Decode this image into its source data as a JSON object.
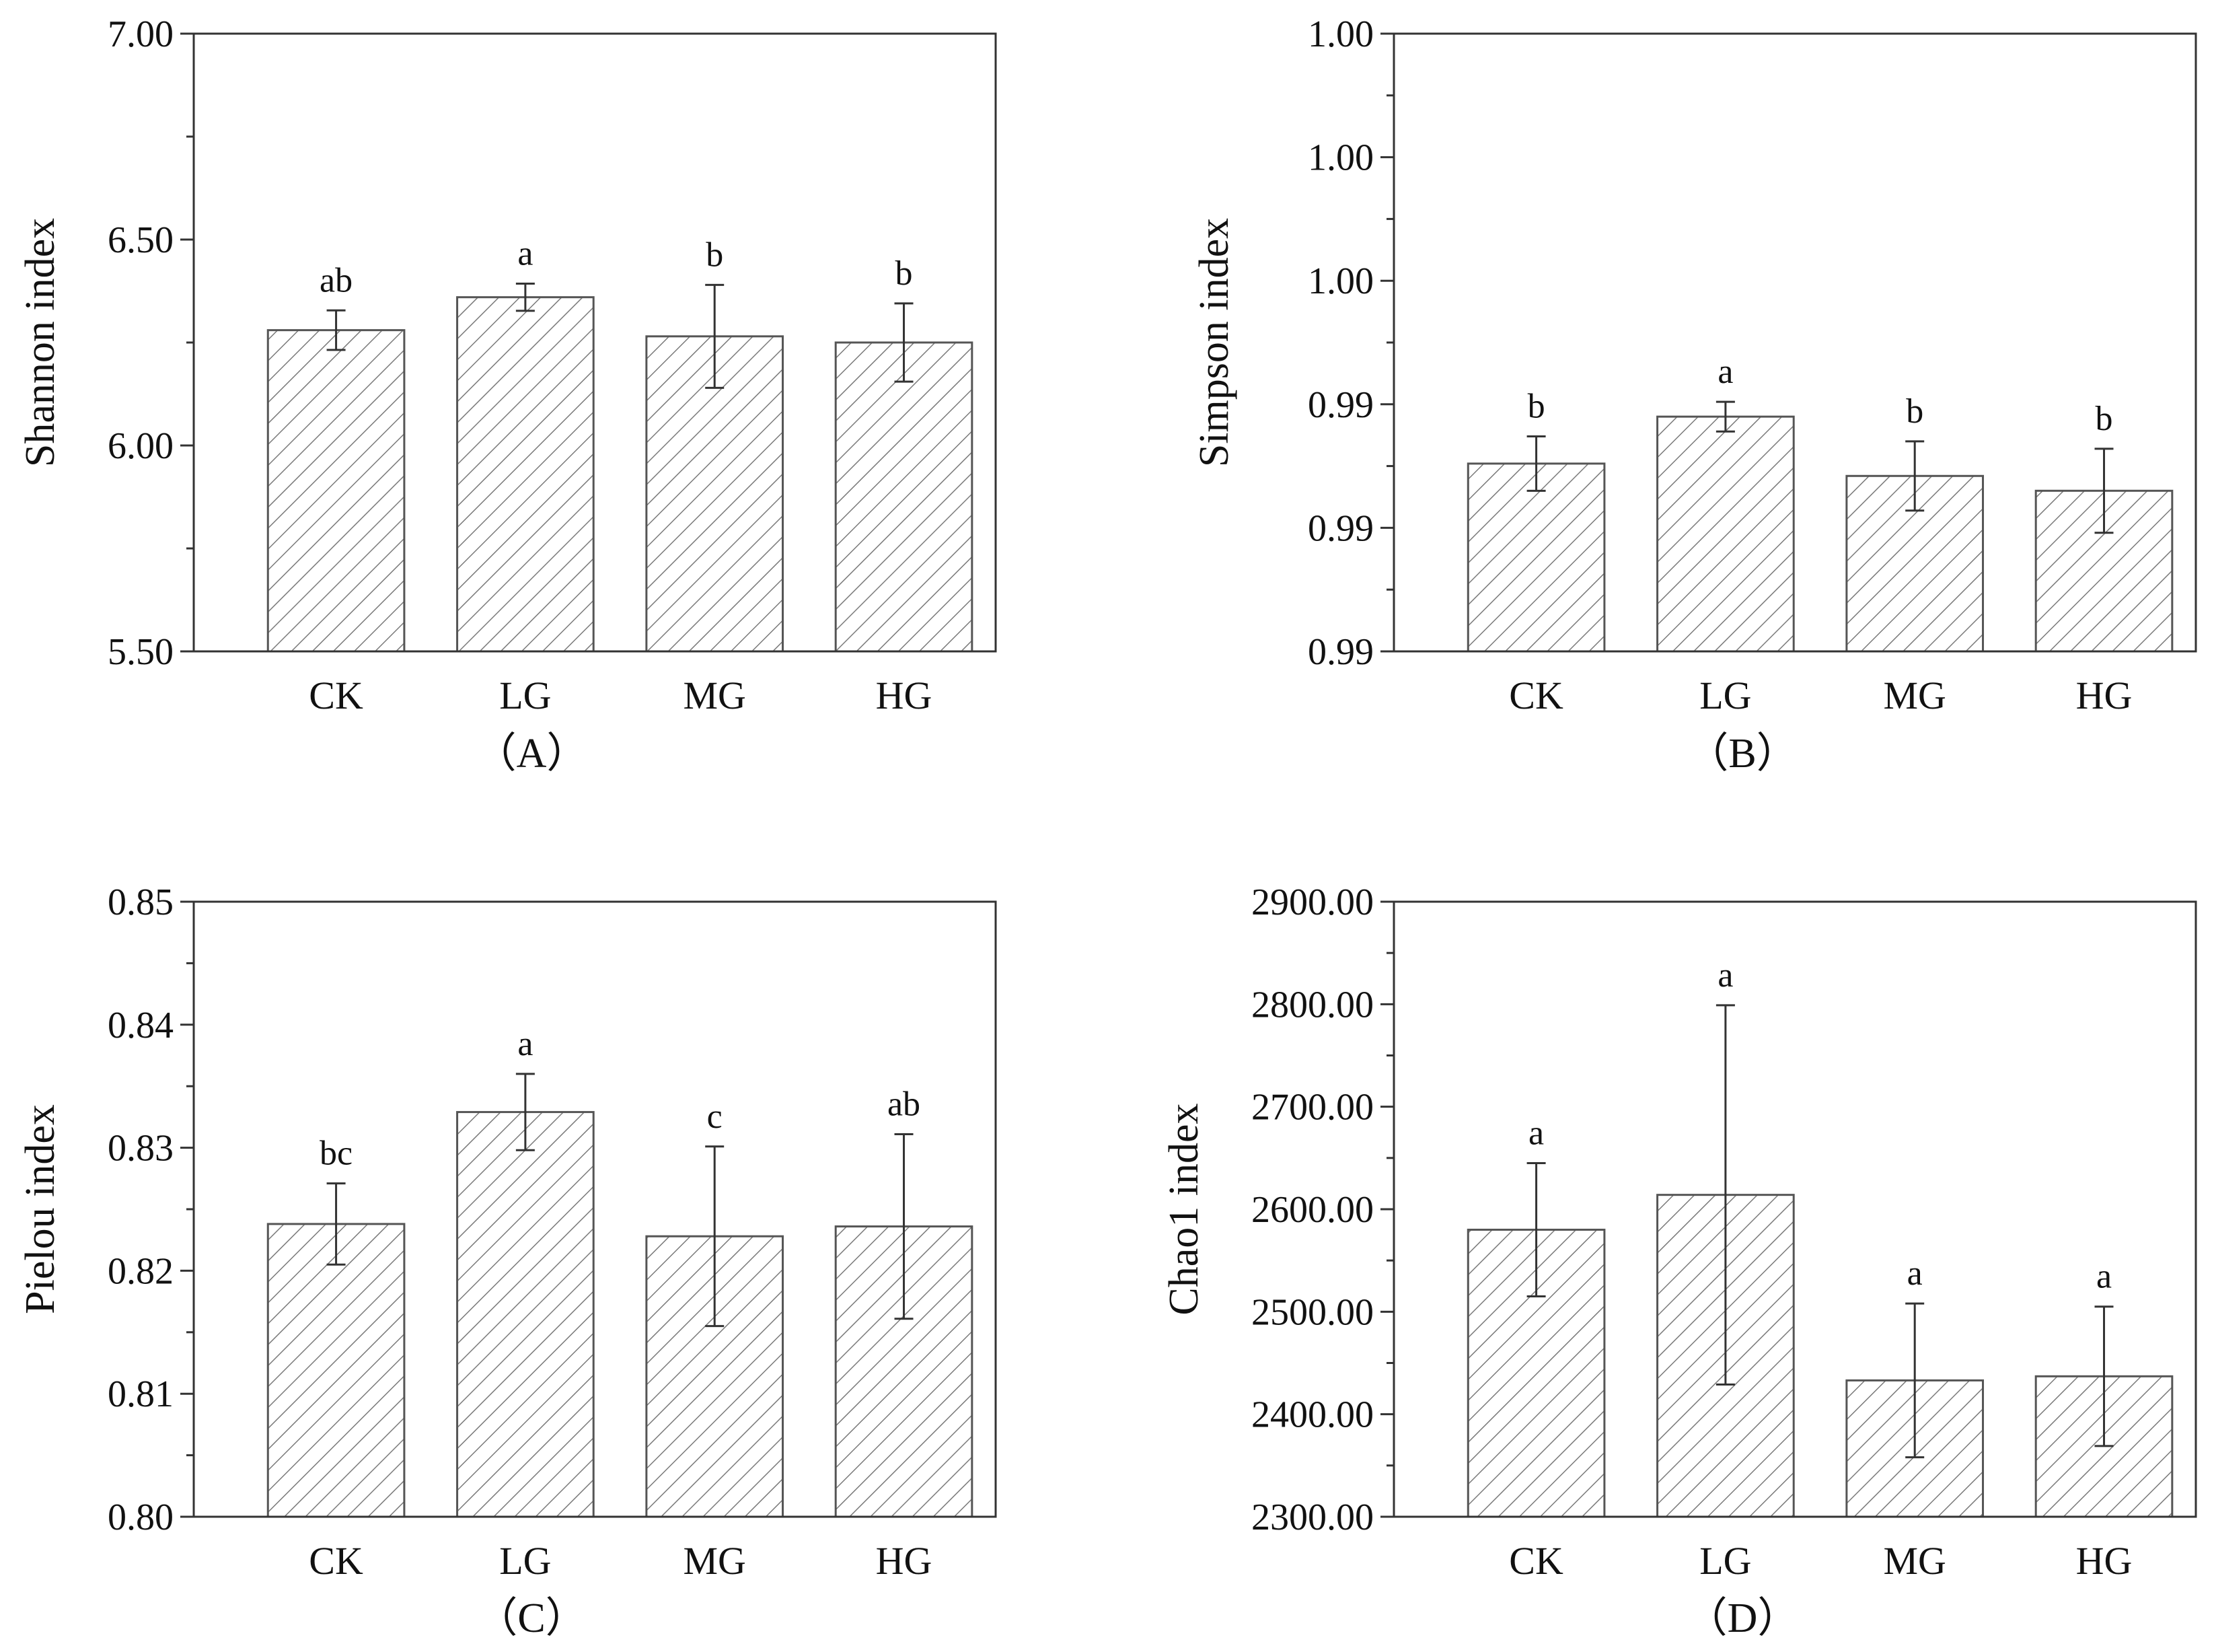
{
  "colors": {
    "bar_fill": "#ffffff",
    "hatch": "#7a7a7a",
    "axis": "#333333",
    "error": "#333333"
  },
  "chart_data": [
    {
      "type": "bar",
      "panel": "(A)",
      "caption": "（A）",
      "ylabel": "Shannon index",
      "categories": [
        "CK",
        "LG",
        "MG",
        "HG"
      ],
      "values": [
        6.28,
        6.36,
        6.265,
        6.25
      ],
      "errors": [
        0.048,
        0.033,
        0.125,
        0.095
      ],
      "significance": [
        "ab",
        "a",
        "b",
        "b"
      ],
      "ylim": [
        5.5,
        7.0
      ],
      "yticks": [
        5.5,
        6.0,
        6.5,
        7.0
      ],
      "ytick_labels": [
        "5.50",
        "6.00",
        "6.50",
        "7.00"
      ]
    },
    {
      "type": "bar",
      "panel": "(B)",
      "caption": "（B）",
      "ylabel": "Simpson index",
      "categories": [
        "CK",
        "LG",
        "MG",
        "HG"
      ],
      "values": [
        0.9926,
        0.9945,
        0.9921,
        0.9915
      ],
      "errors": [
        0.0011,
        0.0006,
        0.0014,
        0.0017
      ],
      "significance": [
        "b",
        "a",
        "b",
        "b"
      ],
      "ylim": [
        0.985,
        1.01
      ],
      "yticks": [
        0.985,
        0.99,
        0.995,
        1.0,
        1.005,
        1.01
      ],
      "ytick_labels": [
        "0.99",
        "0.99",
        "0.99",
        "1.00",
        "1.00",
        "1.00"
      ]
    },
    {
      "type": "bar",
      "panel": "(C)",
      "caption": "（C）",
      "ylabel": "Pielou index",
      "categories": [
        "CK",
        "LG",
        "MG",
        "HG"
      ],
      "values": [
        0.8238,
        0.8329,
        0.8228,
        0.8236
      ],
      "errors": [
        0.0033,
        0.0031,
        0.0073,
        0.0075
      ],
      "significance": [
        "bc",
        "a",
        "c",
        "ab"
      ],
      "ylim": [
        0.8,
        0.85
      ],
      "yticks": [
        0.8,
        0.81,
        0.82,
        0.83,
        0.84,
        0.85
      ],
      "ytick_labels": [
        "0.80",
        "0.81",
        "0.82",
        "0.83",
        "0.84",
        "0.85"
      ]
    },
    {
      "type": "bar",
      "panel": "(D)",
      "caption": "（D）",
      "ylabel": "Chao1 index",
      "categories": [
        "CK",
        "LG",
        "MG",
        "HG"
      ],
      "values": [
        2580,
        2614,
        2433,
        2437
      ],
      "errors": [
        65,
        185,
        75,
        68
      ],
      "significance": [
        "a",
        "a",
        "a",
        "a"
      ],
      "ylim": [
        2300,
        2900
      ],
      "yticks": [
        2300,
        2400,
        2500,
        2600,
        2700,
        2800,
        2900
      ],
      "ytick_labels": [
        "2300.00",
        "2400.00",
        "2500.00",
        "2600.00",
        "2700.00",
        "2800.00",
        "2900.00"
      ]
    }
  ]
}
